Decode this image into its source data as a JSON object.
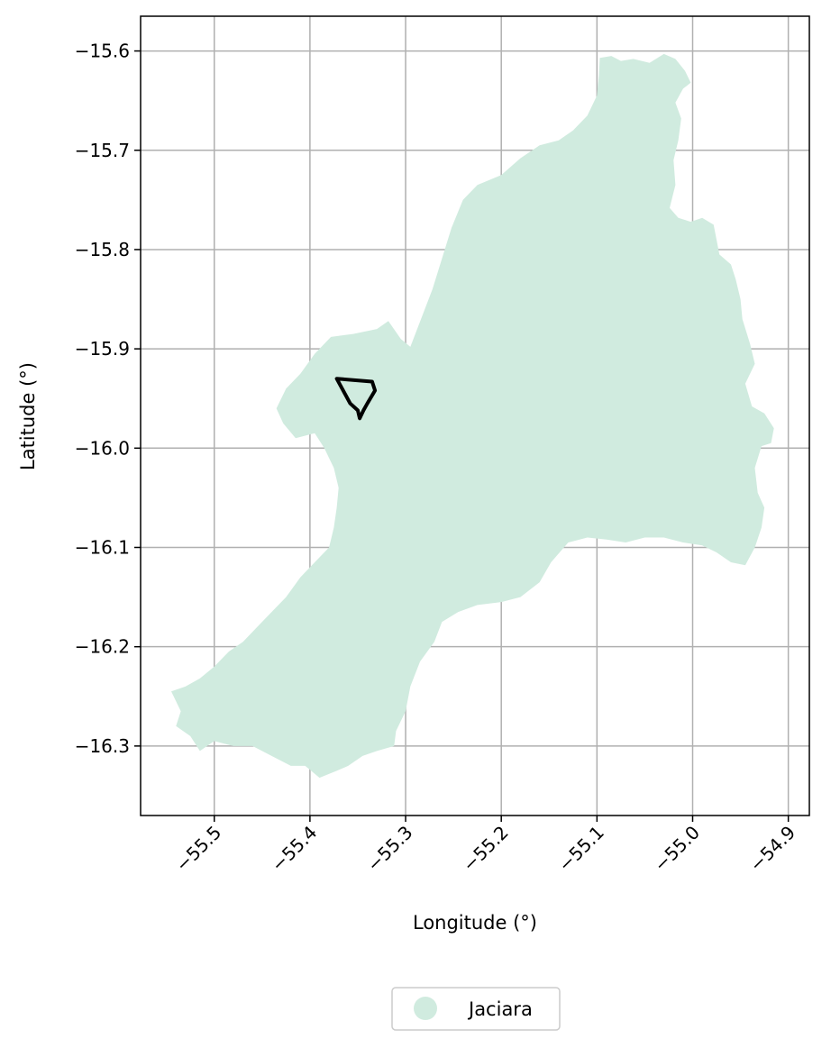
{
  "map": {
    "xlabel": "Longitude (°)",
    "ylabel": "Latitude (°)",
    "xlim": [
      -55.577,
      -54.878
    ],
    "ylim": [
      -16.37,
      -15.565
    ],
    "xticks": [
      -55.5,
      -55.4,
      -55.3,
      -55.2,
      -55.1,
      -55.0,
      -54.9
    ],
    "xtick_labels": [
      "−55.5",
      "−55.4",
      "−55.3",
      "−55.2",
      "−55.1",
      "−55.0",
      "−54.9"
    ],
    "yticks": [
      -15.6,
      -15.7,
      -15.8,
      -15.9,
      -16.0,
      -16.1,
      -16.2,
      -16.3
    ],
    "ytick_labels": [
      "−15.6",
      "−15.7",
      "−15.8",
      "−15.9",
      "−16.0",
      "−16.1",
      "−16.2",
      "−16.3"
    ],
    "grid": true,
    "region": {
      "name": "Jaciara",
      "color": "#d0ebdf",
      "boundary": [
        [
          -55.097,
          -15.607
        ],
        [
          -55.085,
          -15.605
        ],
        [
          -55.075,
          -15.61
        ],
        [
          -55.062,
          -15.608
        ],
        [
          -55.045,
          -15.612
        ],
        [
          -55.03,
          -15.603
        ],
        [
          -55.018,
          -15.608
        ],
        [
          -55.008,
          -15.62
        ],
        [
          -55.002,
          -15.632
        ],
        [
          -55.01,
          -15.638
        ],
        [
          -55.018,
          -15.652
        ],
        [
          -55.012,
          -15.668
        ],
        [
          -55.015,
          -15.69
        ],
        [
          -55.02,
          -15.71
        ],
        [
          -55.018,
          -15.735
        ],
        [
          -55.024,
          -15.758
        ],
        [
          -55.015,
          -15.768
        ],
        [
          -55.002,
          -15.772
        ],
        [
          -54.99,
          -15.768
        ],
        [
          -54.978,
          -15.775
        ],
        [
          -54.975,
          -15.79
        ],
        [
          -54.972,
          -15.805
        ],
        [
          -54.96,
          -15.815
        ],
        [
          -54.955,
          -15.83
        ],
        [
          -54.95,
          -15.85
        ],
        [
          -54.948,
          -15.87
        ],
        [
          -54.94,
          -15.895
        ],
        [
          -54.935,
          -15.915
        ],
        [
          -54.945,
          -15.935
        ],
        [
          -54.938,
          -15.958
        ],
        [
          -54.925,
          -15.965
        ],
        [
          -54.915,
          -15.98
        ],
        [
          -54.918,
          -15.995
        ],
        [
          -54.928,
          -15.998
        ],
        [
          -54.935,
          -16.02
        ],
        [
          -54.932,
          -16.045
        ],
        [
          -54.925,
          -16.06
        ],
        [
          -54.928,
          -16.08
        ],
        [
          -54.935,
          -16.1
        ],
        [
          -54.945,
          -16.118
        ],
        [
          -54.96,
          -16.115
        ],
        [
          -54.975,
          -16.105
        ],
        [
          -54.99,
          -16.098
        ],
        [
          -55.01,
          -16.095
        ],
        [
          -55.03,
          -16.09
        ],
        [
          -55.05,
          -16.09
        ],
        [
          -55.07,
          -16.095
        ],
        [
          -55.09,
          -16.092
        ],
        [
          -55.11,
          -16.09
        ],
        [
          -55.13,
          -16.095
        ],
        [
          -55.148,
          -16.115
        ],
        [
          -55.16,
          -16.135
        ],
        [
          -55.18,
          -16.15
        ],
        [
          -55.2,
          -16.155
        ],
        [
          -55.225,
          -16.158
        ],
        [
          -55.245,
          -16.165
        ],
        [
          -55.262,
          -16.175
        ],
        [
          -55.27,
          -16.195
        ],
        [
          -55.285,
          -16.215
        ],
        [
          -55.295,
          -16.24
        ],
        [
          -55.3,
          -16.265
        ],
        [
          -55.31,
          -16.285
        ],
        [
          -55.312,
          -16.3
        ],
        [
          -55.33,
          -16.305
        ],
        [
          -55.345,
          -16.31
        ],
        [
          -55.36,
          -16.32
        ],
        [
          -55.372,
          -16.325
        ],
        [
          -55.39,
          -16.332
        ],
        [
          -55.405,
          -16.32
        ],
        [
          -55.42,
          -16.32
        ],
        [
          -55.44,
          -16.31
        ],
        [
          -55.46,
          -16.3
        ],
        [
          -55.48,
          -16.3
        ],
        [
          -55.5,
          -16.295
        ],
        [
          -55.515,
          -16.305
        ],
        [
          -55.525,
          -16.29
        ],
        [
          -55.54,
          -16.28
        ],
        [
          -55.535,
          -16.265
        ],
        [
          -55.545,
          -16.245
        ],
        [
          -55.53,
          -16.24
        ],
        [
          -55.515,
          -16.232
        ],
        [
          -55.5,
          -16.22
        ],
        [
          -55.485,
          -16.205
        ],
        [
          -55.47,
          -16.195
        ],
        [
          -55.455,
          -16.18
        ],
        [
          -55.44,
          -16.165
        ],
        [
          -55.425,
          -16.15
        ],
        [
          -55.41,
          -16.13
        ],
        [
          -55.395,
          -16.115
        ],
        [
          -55.38,
          -16.1
        ],
        [
          -55.375,
          -16.08
        ],
        [
          -55.372,
          -16.06
        ],
        [
          -55.37,
          -16.04
        ],
        [
          -55.375,
          -16.02
        ],
        [
          -55.385,
          -16.0
        ],
        [
          -55.395,
          -15.985
        ],
        [
          -55.415,
          -15.99
        ],
        [
          -55.428,
          -15.975
        ],
        [
          -55.435,
          -15.96
        ],
        [
          -55.425,
          -15.94
        ],
        [
          -55.41,
          -15.925
        ],
        [
          -55.395,
          -15.905
        ],
        [
          -55.378,
          -15.888
        ],
        [
          -55.355,
          -15.885
        ],
        [
          -55.33,
          -15.88
        ],
        [
          -55.318,
          -15.872
        ],
        [
          -55.305,
          -15.89
        ],
        [
          -55.295,
          -15.898
        ],
        [
          -55.272,
          -15.84
        ],
        [
          -55.252,
          -15.778
        ],
        [
          -55.24,
          -15.75
        ],
        [
          -55.225,
          -15.735
        ],
        [
          -55.2,
          -15.725
        ],
        [
          -55.18,
          -15.708
        ],
        [
          -55.16,
          -15.695
        ],
        [
          -55.14,
          -15.69
        ],
        [
          -55.125,
          -15.68
        ],
        [
          -55.11,
          -15.665
        ],
        [
          -55.1,
          -15.645
        ],
        [
          -55.098,
          -15.625
        ]
      ]
    },
    "outline": [
      [
        -55.372,
        -15.93
      ],
      [
        -55.335,
        -15.933
      ],
      [
        -55.332,
        -15.942
      ],
      [
        -55.34,
        -15.955
      ],
      [
        -55.344,
        -15.962
      ],
      [
        -55.348,
        -15.97
      ],
      [
        -55.35,
        -15.962
      ],
      [
        -55.358,
        -15.955
      ],
      [
        -55.372,
        -15.93
      ]
    ],
    "legend": {
      "entries": [
        {
          "label": "Jaciara",
          "color": "#d0ebdf"
        }
      ],
      "placement": "bottom-center"
    }
  }
}
